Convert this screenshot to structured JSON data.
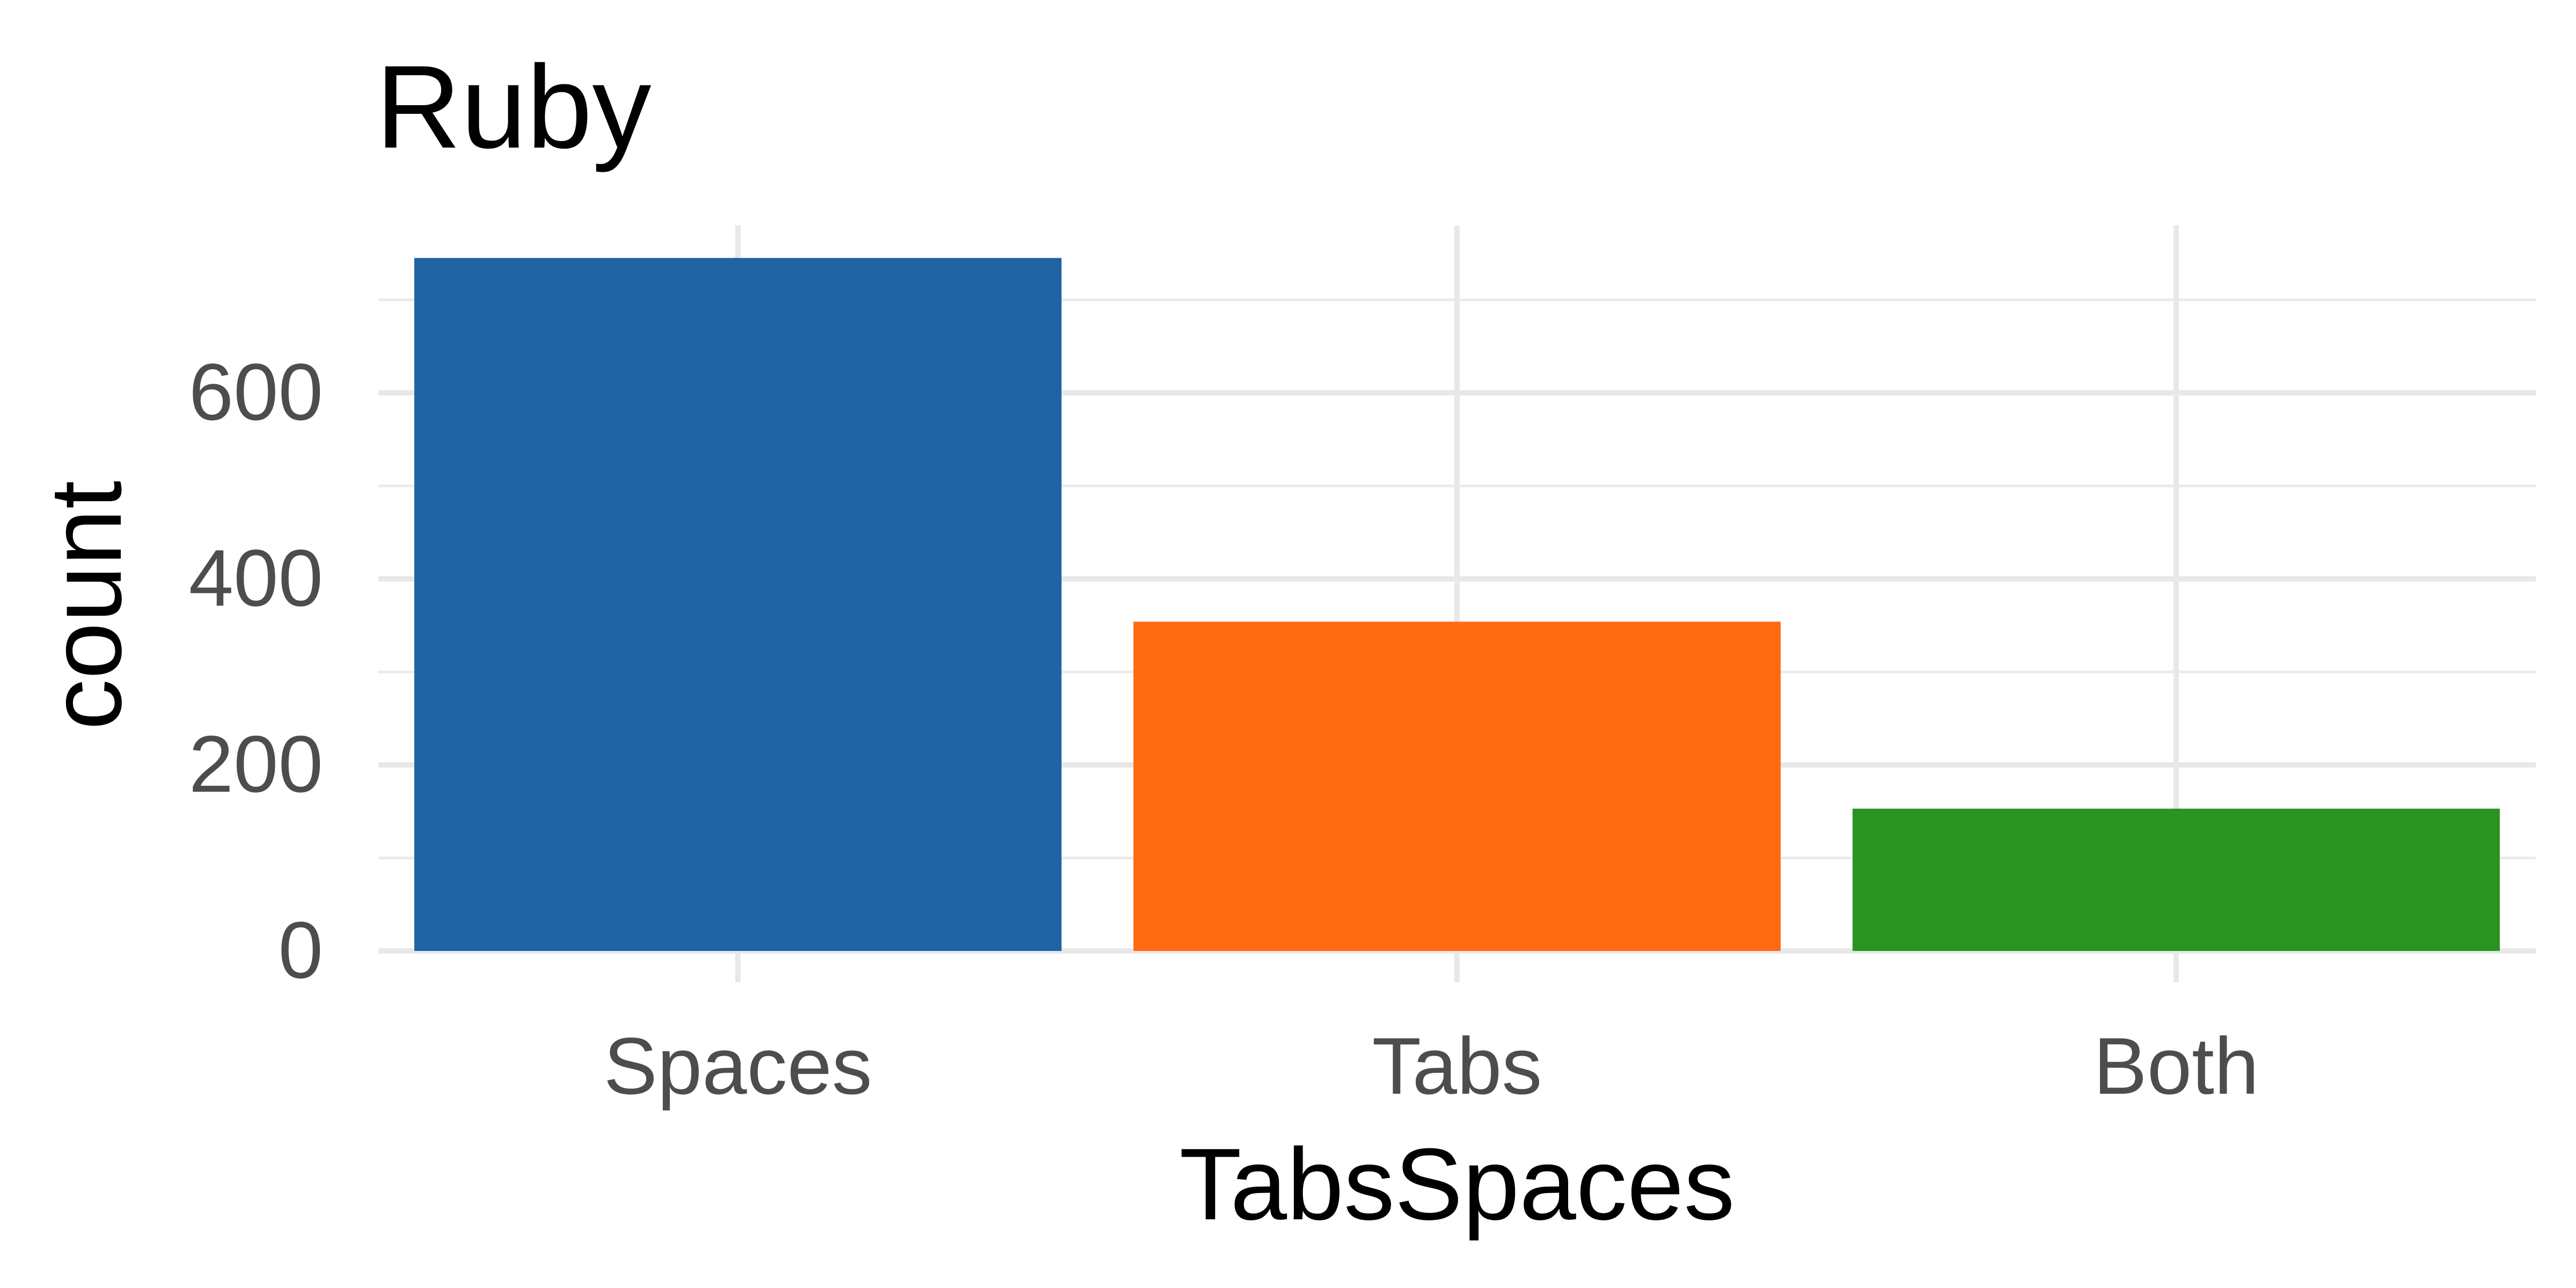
{
  "chart_data": {
    "type": "bar",
    "title": "Ruby",
    "xlabel": "TabsSpaces",
    "ylabel": "count",
    "categories": [
      "Spaces",
      "Tabs",
      "Both"
    ],
    "values": [
      745,
      354,
      153
    ],
    "colors": [
      "#1f63a5",
      "#fe6b13",
      "#2a9422"
    ],
    "ylim": [
      0,
      780
    ],
    "yticks": [
      0,
      200,
      400,
      600
    ],
    "yminor_ticks": [
      100,
      300,
      500,
      700
    ],
    "grid": true,
    "legend": "none"
  }
}
